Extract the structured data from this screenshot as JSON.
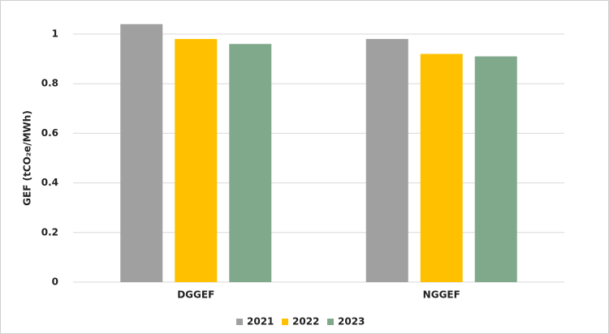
{
  "chart_data": {
    "type": "bar",
    "y_label": "GEF  (tCO₂e/MWh)",
    "categories": [
      "DGGEF",
      "NGGEF"
    ],
    "series": [
      {
        "name": "2021",
        "color": "#a0a0a0",
        "values": [
          1.04,
          0.98
        ]
      },
      {
        "name": "2022",
        "color": "#ffc000",
        "values": [
          0.98,
          0.92
        ]
      },
      {
        "name": "2023",
        "color": "#80a98c",
        "values": [
          0.96,
          0.91
        ]
      }
    ],
    "ylim": [
      0,
      1
    ],
    "yticks": [
      0,
      0.2,
      0.4,
      0.6,
      0.8,
      1
    ],
    "grid": true,
    "legend": "bottom"
  }
}
